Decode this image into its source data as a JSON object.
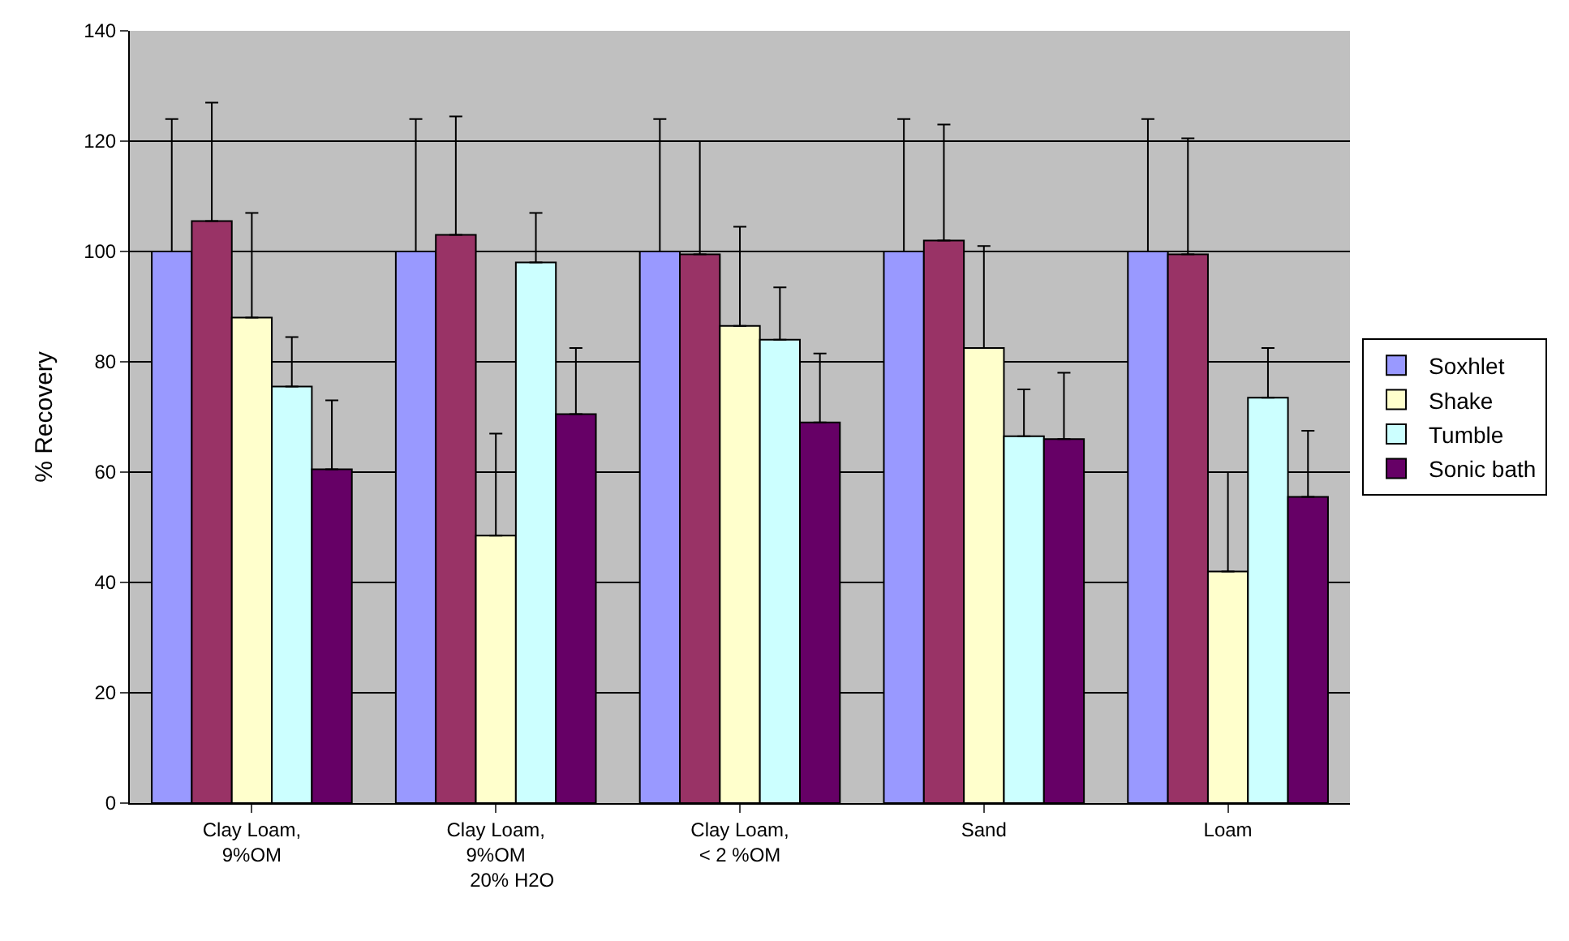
{
  "chart_data": {
    "type": "bar",
    "ylabel": "% Recovery",
    "categories": [
      "Clay Loam,\n9%OM",
      "Clay Loam,\n9%OM\n      20% H2O",
      "Clay Loam,\n< 2 %OM",
      "Sand",
      "Loam"
    ],
    "series": [
      {
        "name": "Soxhlet",
        "color": "#9999ff",
        "values": [
          100,
          100,
          100,
          100,
          100
        ],
        "errors": [
          [
            100,
            124
          ],
          [
            100,
            124
          ],
          [
            100,
            124
          ],
          [
            100,
            124
          ],
          [
            100,
            124
          ]
        ]
      },
      {
        "color": "#993366",
        "values": [
          105.5,
          103,
          99.5,
          102,
          99.5
        ],
        "errors": [
          [
            105.5,
            127
          ],
          [
            103,
            124.5
          ],
          [
            99.5,
            120
          ],
          [
            102,
            123
          ],
          [
            99.5,
            120.5
          ]
        ]
      },
      {
        "name": "Shake",
        "color": "#ffffcc",
        "values": [
          88,
          48.5,
          86.5,
          82.5,
          42
        ],
        "errors": [
          [
            88,
            107
          ],
          [
            48.5,
            67
          ],
          [
            86.5,
            104.5
          ],
          [
            82.5,
            101
          ],
          [
            42,
            60
          ]
        ]
      },
      {
        "name": "Tumble",
        "color": "#ccffff",
        "values": [
          75.5,
          98,
          84,
          66.5,
          73.5
        ],
        "errors": [
          [
            75.5,
            84.5
          ],
          [
            98,
            107
          ],
          [
            84,
            93.5
          ],
          [
            66.5,
            75
          ],
          [
            73.5,
            82.5
          ]
        ]
      },
      {
        "name": "Sonic bath",
        "color": "#660066",
        "values": [
          60.5,
          70.5,
          69,
          66,
          55.5
        ],
        "errors": [
          [
            60.5,
            73
          ],
          [
            70.5,
            82.5
          ],
          [
            69,
            81.5
          ],
          [
            66,
            78
          ],
          [
            55.5,
            67.5
          ]
        ]
      }
    ],
    "ylim": [
      0,
      140
    ],
    "yticks": [
      0,
      20,
      40,
      60,
      80,
      100,
      120,
      140
    ],
    "grid": "y",
    "legend": "right"
  }
}
